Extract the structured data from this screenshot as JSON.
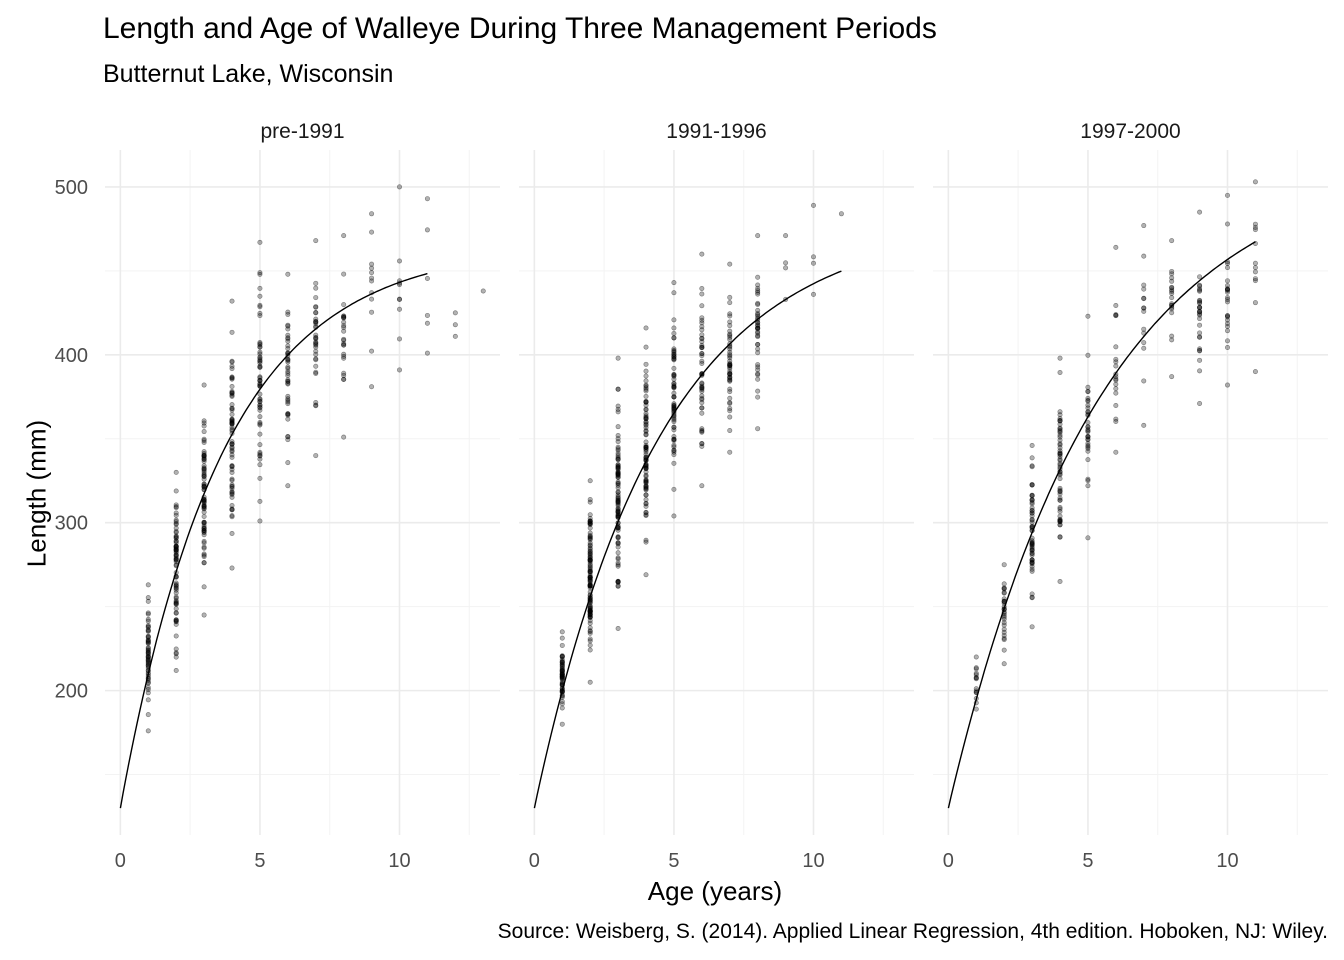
{
  "chart_data": {
    "type": "scatter",
    "title": "Length and Age of Walleye During Three Management Periods",
    "subtitle": "Butternut Lake, Wisconsin",
    "xlabel": "Age (years)",
    "ylabel": "Length (mm)",
    "caption": "Source: Weisberg, S. (2014). Applied Linear Regression, 4th edition. Hoboken, NJ: Wiley.",
    "xlim": [
      -0.55,
      13.6
    ],
    "ylim": [
      114,
      522
    ],
    "x_ticks": [
      0,
      5,
      10
    ],
    "x_tick_labels": [
      "0",
      "5",
      "10"
    ],
    "y_ticks": [
      200,
      300,
      400,
      500
    ],
    "y_tick_labels": [
      "200",
      "300",
      "400",
      "500"
    ],
    "grid": true,
    "point_color": "#000000",
    "point_opacity": 0.3,
    "panels": [
      {
        "label": "pre-1991",
        "fit": {
          "Linf": 465,
          "L0": 130,
          "k": 0.273,
          "age_range": [
            0,
            11
          ]
        },
        "points_by_age": [
          {
            "age": 1,
            "min": 176,
            "max": 263,
            "n": 60
          },
          {
            "age": 2,
            "min": 212,
            "max": 330,
            "n": 80
          },
          {
            "age": 3,
            "min": 245,
            "max": 382,
            "n": 80
          },
          {
            "age": 4,
            "min": 273,
            "max": 432,
            "n": 70
          },
          {
            "age": 5,
            "min": 301,
            "max": 467,
            "n": 60
          },
          {
            "age": 6,
            "min": 322,
            "max": 448,
            "n": 45
          },
          {
            "age": 7,
            "min": 340,
            "max": 468,
            "n": 35
          },
          {
            "age": 8,
            "min": 351,
            "max": 471,
            "n": 25
          },
          {
            "age": 9,
            "min": 381,
            "max": 484,
            "n": 12
          },
          {
            "age": 10,
            "min": 391,
            "max": 500,
            "n": 10
          },
          {
            "age": 11,
            "min": 401,
            "max": 493,
            "n": 6
          },
          {
            "age": 12,
            "min": 411,
            "max": 425,
            "n": 3
          },
          {
            "age": 13,
            "min": 438,
            "max": 438,
            "n": 1
          }
        ]
      },
      {
        "label": "1991-1996",
        "fit": {
          "Linf": 480,
          "L0": 130,
          "k": 0.223,
          "age_range": [
            0,
            11
          ]
        },
        "points_by_age": [
          {
            "age": 1,
            "min": 180,
            "max": 235,
            "n": 60
          },
          {
            "age": 2,
            "min": 205,
            "max": 325,
            "n": 120
          },
          {
            "age": 3,
            "min": 237,
            "max": 398,
            "n": 100
          },
          {
            "age": 4,
            "min": 269,
            "max": 416,
            "n": 90
          },
          {
            "age": 5,
            "min": 304,
            "max": 443,
            "n": 70
          },
          {
            "age": 6,
            "min": 322,
            "max": 460,
            "n": 50
          },
          {
            "age": 7,
            "min": 342,
            "max": 454,
            "n": 50
          },
          {
            "age": 8,
            "min": 356,
            "max": 471,
            "n": 40
          },
          {
            "age": 9,
            "min": 433,
            "max": 471,
            "n": 4
          },
          {
            "age": 10,
            "min": 436,
            "max": 489,
            "n": 4
          },
          {
            "age": 11,
            "min": 484,
            "max": 484,
            "n": 1
          }
        ]
      },
      {
        "label": "1997-2000",
        "fit": {
          "Linf": 520,
          "L0": 130,
          "k": 0.182,
          "age_range": [
            0,
            11
          ]
        },
        "points_by_age": [
          {
            "age": 1,
            "min": 189,
            "max": 220,
            "n": 15
          },
          {
            "age": 2,
            "min": 216,
            "max": 275,
            "n": 30
          },
          {
            "age": 3,
            "min": 238,
            "max": 346,
            "n": 60
          },
          {
            "age": 4,
            "min": 265,
            "max": 398,
            "n": 60
          },
          {
            "age": 5,
            "min": 291,
            "max": 423,
            "n": 35
          },
          {
            "age": 6,
            "min": 342,
            "max": 464,
            "n": 20
          },
          {
            "age": 7,
            "min": 358,
            "max": 477,
            "n": 15
          },
          {
            "age": 8,
            "min": 387,
            "max": 468,
            "n": 20
          },
          {
            "age": 9,
            "min": 371,
            "max": 485,
            "n": 30
          },
          {
            "age": 10,
            "min": 382,
            "max": 495,
            "n": 25
          },
          {
            "age": 11,
            "min": 390,
            "max": 503,
            "n": 12
          }
        ]
      }
    ]
  }
}
